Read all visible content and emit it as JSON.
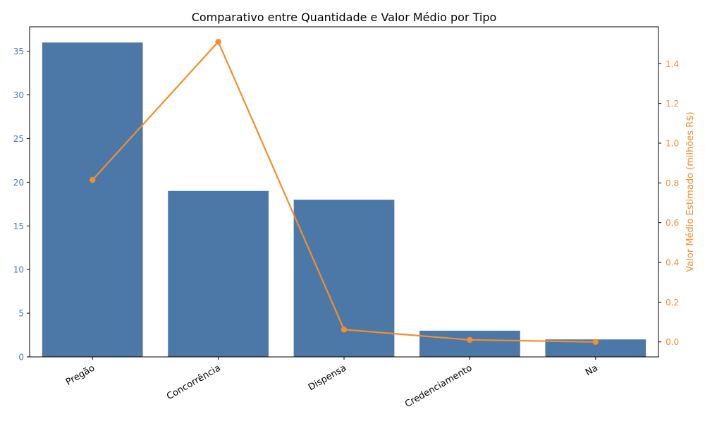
{
  "chart_data": {
    "type": "bar+line",
    "title": "Comparativo entre Quantidade e Valor Médio por Tipo",
    "categories": [
      "Pregão",
      "Concorrência",
      "Dispensa",
      "Credenciamento",
      "Na"
    ],
    "series": [
      {
        "kind": "bar",
        "axis": "left",
        "color": "#4c78a8",
        "values": [
          36,
          19,
          18,
          3,
          2
        ]
      },
      {
        "name": "Valor Médio Estimado (milhões R$)",
        "kind": "line",
        "axis": "right",
        "color": "#f28e2b",
        "values": [
          0.815,
          1.51,
          0.062,
          0.01,
          0.0
        ]
      }
    ],
    "y_left": {
      "label": "",
      "ylim": [
        0,
        37.8
      ],
      "ticks": [
        0,
        5,
        10,
        15,
        20,
        25,
        30,
        35
      ],
      "tick_labels": [
        "0",
        "5",
        "10",
        "15",
        "20",
        "25",
        "30",
        "35"
      ],
      "color": "#4c78a8"
    },
    "y_right": {
      "label": "Valor Médio Estimado (milhões R$)",
      "ylim": [
        -0.0755,
        1.5855
      ],
      "ticks": [
        0.0,
        0.2,
        0.4,
        0.6,
        0.8,
        1.0,
        1.2,
        1.4
      ],
      "tick_labels": [
        "0.0",
        "0.2",
        "0.4",
        "0.6",
        "0.8",
        "1.0",
        "1.2",
        "1.4"
      ],
      "color": "#f28e2b"
    },
    "xlabel": "",
    "grid": false,
    "legend": "none"
  }
}
